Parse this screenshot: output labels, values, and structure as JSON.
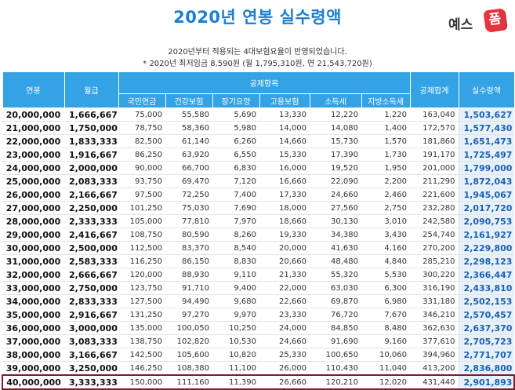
{
  "title": "2020년 연봉 실수령액",
  "logo": {
    "text": "예스",
    "badge": "폼"
  },
  "notes": [
    "2020년부터 적용되는 4대보험요율이 반영되었습니다.",
    "* 2020년 최저임금 8,590원 (월 1,795,310원, 연 21,543,720원)"
  ],
  "table": {
    "headers": {
      "salary": "연봉",
      "monthly": "월급",
      "deductions_group": "공제항목",
      "pension": "국민연금",
      "health": "건강보험",
      "longterm": "장기요양",
      "employment": "고용보험",
      "income_tax": "소득세",
      "local_tax": "지방소득세",
      "total_deduction": "공제합계",
      "net": "실수령액"
    },
    "rows": [
      [
        "20,000,000",
        "1,666,667",
        "75,000",
        "55,580",
        "5,690",
        "13,330",
        "12,220",
        "1,220",
        "163,040",
        "1,503,627"
      ],
      [
        "21,000,000",
        "1,750,000",
        "78,750",
        "58,360",
        "5,980",
        "14,000",
        "14,080",
        "1,400",
        "172,570",
        "1,577,430"
      ],
      [
        "22,000,000",
        "1,833,333",
        "82,500",
        "61,140",
        "6,260",
        "14,660",
        "15,730",
        "1,570",
        "181,860",
        "1,651,473"
      ],
      [
        "23,000,000",
        "1,916,667",
        "86,250",
        "63,920",
        "6,550",
        "15,330",
        "17,390",
        "1,730",
        "191,170",
        "1,725,497"
      ],
      [
        "24,000,000",
        "2,000,000",
        "90,000",
        "66,700",
        "6,830",
        "16,000",
        "19,520",
        "1,950",
        "201,000",
        "1,799,000"
      ],
      [
        "25,000,000",
        "2,083,333",
        "93,750",
        "69,470",
        "7,120",
        "16,660",
        "22,090",
        "2,200",
        "211,290",
        "1,872,043"
      ],
      [
        "26,000,000",
        "2,166,667",
        "97,500",
        "72,250",
        "7,400",
        "17,330",
        "24,660",
        "2,460",
        "221,600",
        "1,945,067"
      ],
      [
        "27,000,000",
        "2,250,000",
        "101,250",
        "75,030",
        "7,690",
        "18,000",
        "27,560",
        "2,750",
        "232,280",
        "2,017,720"
      ],
      [
        "28,000,000",
        "2,333,333",
        "105,000",
        "77,810",
        "7,970",
        "18,660",
        "30,130",
        "3,010",
        "242,580",
        "2,090,753"
      ],
      [
        "29,000,000",
        "2,416,667",
        "108,750",
        "80,590",
        "8,260",
        "19,330",
        "34,380",
        "3,430",
        "254,740",
        "2,161,927"
      ],
      [
        "30,000,000",
        "2,500,000",
        "112,500",
        "83,370",
        "8,540",
        "20,000",
        "41,630",
        "4,160",
        "270,200",
        "2,229,800"
      ],
      [
        "31,000,000",
        "2,583,333",
        "116,250",
        "86,150",
        "8,830",
        "20,660",
        "48,480",
        "4,840",
        "285,210",
        "2,298,123"
      ],
      [
        "32,000,000",
        "2,666,667",
        "120,000",
        "88,930",
        "9,110",
        "21,330",
        "55,320",
        "5,530",
        "300,220",
        "2,366,447"
      ],
      [
        "33,000,000",
        "2,750,000",
        "123,750",
        "91,710",
        "9,400",
        "22,000",
        "63,030",
        "6,300",
        "316,190",
        "2,433,810"
      ],
      [
        "34,000,000",
        "2,833,333",
        "127,500",
        "94,490",
        "9,680",
        "22,660",
        "69,870",
        "6,980",
        "331,180",
        "2,502,153"
      ],
      [
        "35,000,000",
        "2,916,667",
        "131,250",
        "97,270",
        "9,970",
        "23,330",
        "76,720",
        "7,670",
        "346,210",
        "2,570,457"
      ],
      [
        "36,000,000",
        "3,000,000",
        "135,000",
        "100,050",
        "10,250",
        "24,000",
        "84,850",
        "8,480",
        "362,630",
        "2,637,370"
      ],
      [
        "37,000,000",
        "3,083,333",
        "138,750",
        "102,820",
        "10,530",
        "24,660",
        "91,690",
        "9,160",
        "377,610",
        "2,705,723"
      ],
      [
        "38,000,000",
        "3,166,667",
        "142,500",
        "105,600",
        "10,820",
        "25,330",
        "100,650",
        "10,060",
        "394,960",
        "2,771,707"
      ],
      [
        "39,000,000",
        "3,250,000",
        "146,250",
        "108,380",
        "11,100",
        "26,000",
        "110,430",
        "11,040",
        "413,200",
        "2,836,800"
      ],
      [
        "40,000,000",
        "3,333,333",
        "150,000",
        "111,160",
        "11,390",
        "26,660",
        "120,210",
        "12,020",
        "431,440",
        "2,901,893"
      ]
    ],
    "highlighted_row": 20
  },
  "colors": {
    "header_bg": "#33a3e6",
    "title": "#1b7fd1",
    "net_bg": "#e6f1fb",
    "highlight_border": "#7a1c2a"
  }
}
